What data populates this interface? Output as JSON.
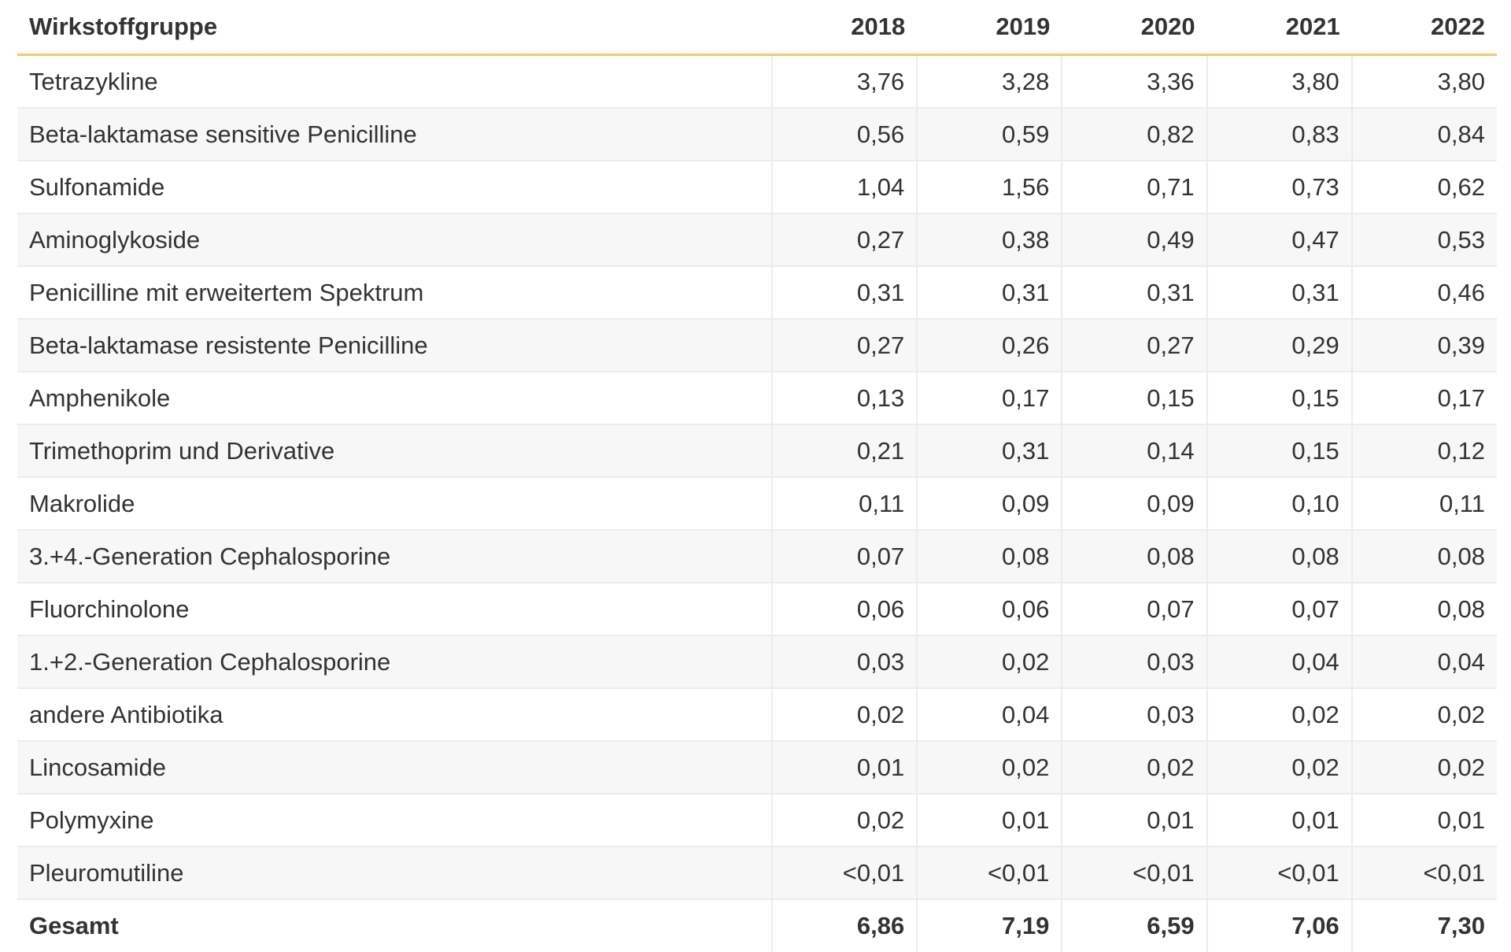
{
  "table": {
    "headers": [
      "Wirkstoffgruppe",
      "2018",
      "2019",
      "2020",
      "2021",
      "2022"
    ],
    "rows": [
      {
        "name": "Tetrazykline",
        "values": [
          "3,76",
          "3,28",
          "3,36",
          "3,80",
          "3,80"
        ]
      },
      {
        "name": "Beta-laktamase sensitive Penicilline",
        "values": [
          "0,56",
          "0,59",
          "0,82",
          "0,83",
          "0,84"
        ]
      },
      {
        "name": "Sulfonamide",
        "values": [
          "1,04",
          "1,56",
          "0,71",
          "0,73",
          "0,62"
        ]
      },
      {
        "name": "Aminoglykoside",
        "values": [
          "0,27",
          "0,38",
          "0,49",
          "0,47",
          "0,53"
        ]
      },
      {
        "name": "Penicilline mit erweitertem Spektrum",
        "values": [
          "0,31",
          "0,31",
          "0,31",
          "0,31",
          "0,46"
        ]
      },
      {
        "name": "Beta-laktamase resistente Penicilline",
        "values": [
          "0,27",
          "0,26",
          "0,27",
          "0,29",
          "0,39"
        ]
      },
      {
        "name": "Amphenikole",
        "values": [
          "0,13",
          "0,17",
          "0,15",
          "0,15",
          "0,17"
        ]
      },
      {
        "name": "Trimethoprim und Derivative",
        "values": [
          "0,21",
          "0,31",
          "0,14",
          "0,15",
          "0,12"
        ]
      },
      {
        "name": "Makrolide",
        "values": [
          "0,11",
          "0,09",
          "0,09",
          "0,10",
          "0,11"
        ]
      },
      {
        "name": "3.+4.-Generation Cephalosporine",
        "values": [
          "0,07",
          "0,08",
          "0,08",
          "0,08",
          "0,08"
        ]
      },
      {
        "name": "Fluorchinolone",
        "values": [
          "0,06",
          "0,06",
          "0,07",
          "0,07",
          "0,08"
        ]
      },
      {
        "name": "1.+2.-Generation Cephalosporine",
        "values": [
          "0,03",
          "0,02",
          "0,03",
          "0,04",
          "0,04"
        ]
      },
      {
        "name": "andere Antibiotika",
        "values": [
          "0,02",
          "0,04",
          "0,03",
          "0,02",
          "0,02"
        ]
      },
      {
        "name": "Lincosamide",
        "values": [
          "0,01",
          "0,02",
          "0,02",
          "0,02",
          "0,02"
        ]
      },
      {
        "name": "Polymyxine",
        "values": [
          "0,02",
          "0,01",
          "0,01",
          "0,01",
          "0,01"
        ]
      },
      {
        "name": "Pleuromutiline",
        "values": [
          "<0,01",
          "<0,01",
          "<0,01",
          "<0,01",
          "<0,01"
        ]
      }
    ],
    "total": {
      "name": "Gesamt",
      "values": [
        "6,86",
        "7,19",
        "6,59",
        "7,06",
        "7,30"
      ]
    }
  },
  "colors": {
    "header_rule": "#f2c96a",
    "stripe": "#f7f7f7",
    "grid": "#ececec",
    "text": "#333333"
  }
}
